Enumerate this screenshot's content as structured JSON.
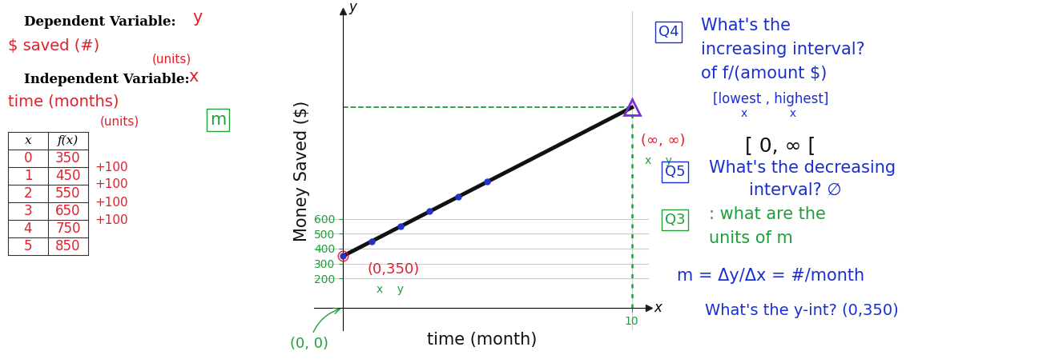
{
  "chart_data": {
    "type": "line",
    "x_label": "time (month)",
    "y_label": "Money Saved ($)",
    "series": [
      {
        "type": "line",
        "x": [
          0,
          10
        ],
        "values": [
          350,
          1350
        ],
        "color": "#111111",
        "line_style": "solid"
      },
      {
        "type": "scatter",
        "x": [
          0,
          1,
          2,
          3,
          4,
          5
        ],
        "values": [
          350,
          450,
          550,
          650,
          750,
          850
        ],
        "color": "#2233cc",
        "marker": "o"
      }
    ],
    "xlim": [
      -1,
      10.6
    ],
    "xticks": [
      10
    ],
    "ylim": [
      -150,
      2000
    ],
    "yticks": [
      200,
      300,
      400,
      500,
      600
    ],
    "grid": true,
    "annotations": [
      {
        "text": "(0,350)",
        "sub": "x    y",
        "point": [
          0,
          350
        ]
      },
      {
        "text": "(∞, ∞)",
        "sub": "x    y",
        "point": [
          10,
          1350
        ]
      },
      {
        "text": "(0, 0)",
        "point": [
          0,
          0
        ]
      }
    ]
  },
  "axis_letters": {
    "x": "x",
    "y": "y"
  },
  "variables": {
    "dependent": {
      "heading": "Dependent Variable:",
      "symbol": "y",
      "name": "$ saved (#)",
      "units": "(units)"
    },
    "independent": {
      "heading": "Independent Variable:",
      "symbol": "x",
      "name": "time (months)",
      "units": "(units)"
    },
    "slope_symbol": "m"
  },
  "table": {
    "header": [
      "x",
      "f(x)"
    ],
    "rows": [
      [
        0,
        350
      ],
      [
        1,
        450
      ],
      [
        2,
        550
      ],
      [
        3,
        650
      ],
      [
        4,
        750
      ],
      [
        5,
        850
      ]
    ],
    "differences": [
      "+100",
      "+100",
      "+100",
      "+100"
    ]
  },
  "notes": {
    "q4": {
      "label": "Q4",
      "lines": [
        "What's the",
        "increasing interval?",
        "of f/(amount $)"
      ],
      "hint": "[lowest , highest]",
      "hint_sub": "x            x",
      "answer": "[ 0, ∞ ["
    },
    "q5": {
      "label": "Q5",
      "lines": [
        "What's the decreasing",
        "interval? ∅"
      ]
    },
    "q3": {
      "label": "Q3",
      "lines": [
        ": what are the",
        "units of m"
      ]
    },
    "slope_formula": "m = Δy/Δx = #/month",
    "y_int": "What's the y-int? (0,350)"
  }
}
